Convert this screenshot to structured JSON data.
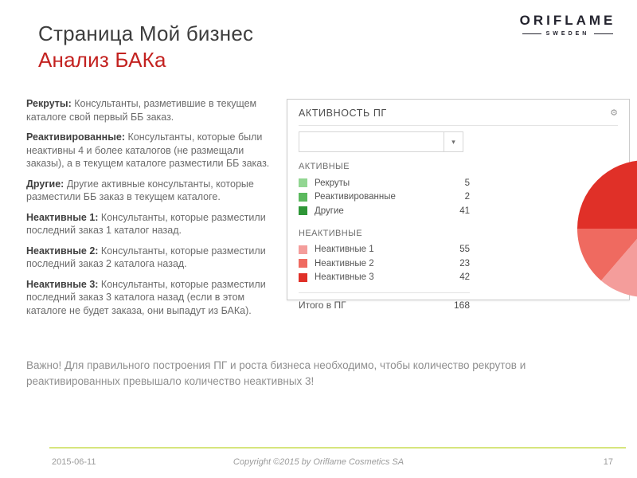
{
  "slide": {
    "title_line1": "Страница Мой бизнес",
    "title_line2": "Анализ БАКа",
    "logo": {
      "brand": "ORIFLAME",
      "sub": "SWEDEN"
    },
    "note": "Важно! Для правильного построения ПГ и роста бизнеса необходимо, чтобы количество рекрутов и реактивированных превышало количество неактивных 3!",
    "footer": {
      "date": "2015-06-11",
      "copyright": "Copyright ©2015 by Oriflame Cosmetics SA",
      "page": "17"
    }
  },
  "definitions": [
    {
      "term": "Рекруты:",
      "text": " Консультанты, разметившие в текущем каталоге свой первый ББ заказ."
    },
    {
      "term": "Реактивированные:",
      "text": " Консультанты, которые были неактивны 4 и более каталогов (не размещали заказы), а в текущем каталоге разместили ББ заказ."
    },
    {
      "term": "Другие:",
      "text": " Другие активные консультанты, которые разместили ББ заказ в текущем каталоге."
    },
    {
      "term": "Неактивные 1:",
      "text": " Консультанты, которые разместили последний заказ 1 каталог назад."
    },
    {
      "term": "Неактивные 2:",
      "text": " Консультанты, которые разместили последний заказ 2 каталога назад."
    },
    {
      "term": "Неактивные 3:",
      "text": " Консультанты, которые разместили последний заказ 3 каталога назад (если в этом каталоге не будет заказа, они выпадут из БАКа)."
    }
  ],
  "panel": {
    "title": "АКТИВНОСТЬ ПГ",
    "gear_icon": "⚙",
    "dropdown_value": "",
    "dropdown_caret": "▾",
    "groups": [
      {
        "header": "АКТИВНЫЕ",
        "rows": [
          {
            "label": "Рекруты",
            "value": "5",
            "color": "#92d692"
          },
          {
            "label": "Реактивированные",
            "value": "2",
            "color": "#5bb95e"
          },
          {
            "label": "Другие",
            "value": "41",
            "color": "#2e9637"
          }
        ]
      },
      {
        "header": "НЕАКТИВНЫЕ",
        "rows": [
          {
            "label": "Неактивные 1",
            "value": "55",
            "color": "#f49d9b"
          },
          {
            "label": "Неактивные 2",
            "value": "23",
            "color": "#ef6a60"
          },
          {
            "label": "Неактивные 3",
            "value": "42",
            "color": "#e03028"
          }
        ]
      }
    ],
    "total_label": "Итого в ПГ",
    "total_value": "168"
  },
  "chart_data": {
    "type": "pie",
    "title": "АКТИВНОСТЬ ПГ",
    "labels": [
      "Рекруты",
      "Реактивированные",
      "Другие",
      "Неактивные 1",
      "Неактивные 2",
      "Неактивные 3"
    ],
    "values": [
      5,
      2,
      41,
      55,
      23,
      42
    ],
    "colors": [
      "#92d692",
      "#6cc06a",
      "#2e9637",
      "#f49d9b",
      "#ef6a60",
      "#e03028"
    ],
    "total": 168,
    "start_angle_deg": 0,
    "direction": "clockwise",
    "legend_position": "left"
  }
}
